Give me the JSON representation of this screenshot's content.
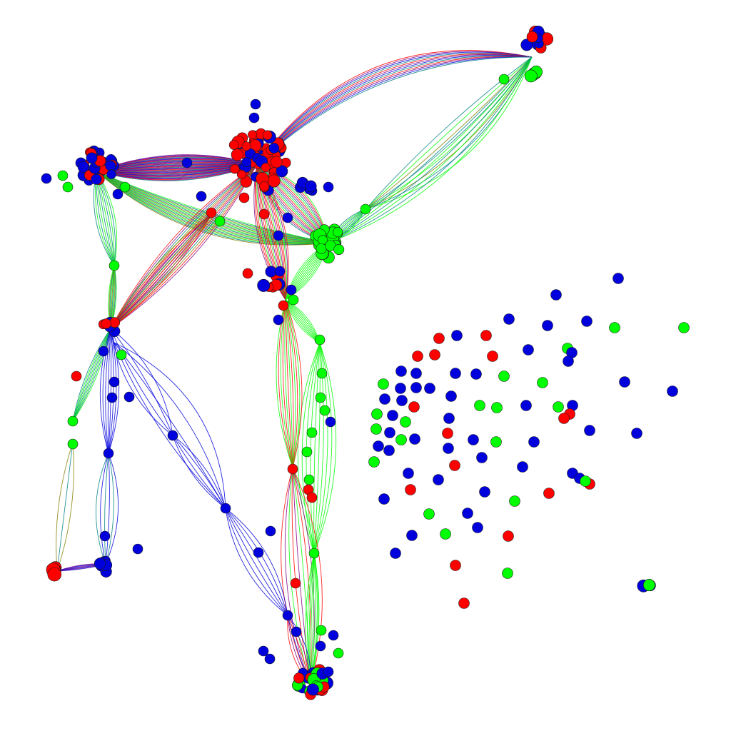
{
  "figure": {
    "type": "network-graph",
    "background": "#ffffff",
    "legend": "none",
    "title": "",
    "node_colors": {
      "red": "#ff0000",
      "green": "#00ff00",
      "blue": "#0000dd"
    },
    "edge_colors": {
      "red": "#ff0000",
      "green": "#00ff00",
      "blue": "#0000dd",
      "purple": "#800080",
      "teal": "#008080",
      "olive": "#808000"
    }
  }
}
